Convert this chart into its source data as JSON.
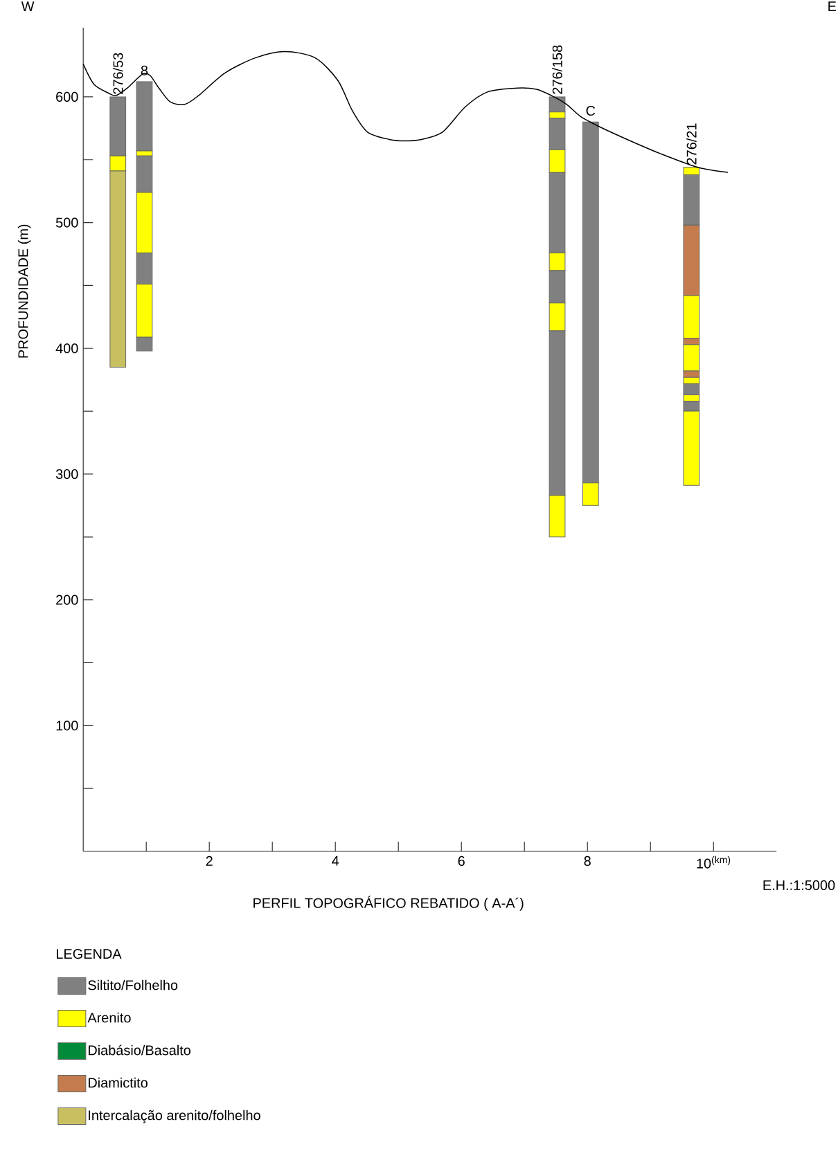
{
  "chart_data": {
    "type": "bar",
    "xlabel": "PERFIL TOPOGRÁFICO REBATIDO ( A-A´)",
    "ylabel": "PROFUNDIDADE (m)",
    "legend_title": "LEGENDA",
    "legend": "bottom",
    "xlim": [
      0,
      11
    ],
    "ylim": [
      0,
      655
    ],
    "xticks": [
      {
        "value": 1,
        "label": null
      },
      2,
      {
        "value": 3,
        "label": null
      },
      4,
      {
        "value": 5,
        "label": null
      },
      6,
      {
        "value": 7,
        "label": null
      },
      8,
      {
        "value": 9,
        "label": null
      },
      {
        "value": 10,
        "label": "10$^{(km)}$"
      }
    ],
    "yticks": [
      {
        "value": 50,
        "label": null
      },
      100,
      {
        "value": 150,
        "label": null
      },
      200,
      {
        "value": 250,
        "label": null
      },
      300,
      {
        "value": 350,
        "label": null
      },
      400,
      {
        "value": 450,
        "label": null
      },
      500,
      {
        "value": 550,
        "label": null
      },
      600
    ],
    "series": [
      {
        "name": "Siltito/Folhelho",
        "color": "#808080",
        "x": [
          0.55,
          0.97,
          7.52,
          8.05,
          9.65
        ],
        "base": [
          553,
          557,
          588,
          293,
          498
        ],
        "values": [
          47,
          55,
          12,
          287,
          40
        ]
      },
      {
        "name": "Arenito",
        "color": "#ffff00",
        "x": [
          0.55,
          0.97,
          7.52,
          8.05,
          9.65
        ],
        "base": [
          541,
          553,
          583,
          275,
          538
        ],
        "values": [
          12,
          4,
          5,
          18,
          6
        ]
      },
      {
        "name": "Diabásio/Basalto",
        "color": "#008a3a"
      },
      {
        "name": "Diamictito",
        "color": "#c47c4e",
        "x": [
          9.65
        ],
        "base": [
          442
        ],
        "values": [
          56
        ]
      },
      {
        "name": "Intercalação arenito/folhelho",
        "color": "#c8c060",
        "x": [
          0.55
        ],
        "base": [
          385
        ],
        "values": [
          156
        ]
      },
      {
        "color": "#808080",
        "x": [
          0.97,
          7.52,
          9.65
        ],
        "base": [
          524,
          558,
          363
        ],
        "values": [
          29,
          25,
          9
        ]
      },
      {
        "color": "#808080",
        "x": [
          0.97,
          7.52,
          9.65
        ],
        "base": [
          451,
          476,
          350
        ],
        "values": [
          25,
          64,
          8
        ]
      },
      {
        "color": "#808080",
        "x": [
          0.97,
          7.52
        ],
        "base": [
          398,
          436
        ],
        "values": [
          11,
          26
        ]
      },
      {
        "color": "#808080",
        "x": [
          7.52
        ],
        "base": [
          283
        ],
        "values": [
          131
        ]
      },
      {
        "color": "#ffff00",
        "x": [
          0.97,
          7.52,
          9.65
        ],
        "base": [
          476,
          540,
          408
        ],
        "values": [
          48,
          18,
          34
        ]
      },
      {
        "color": "#ffff00",
        "x": [
          0.97,
          7.52,
          9.65
        ],
        "base": [
          409,
          462,
          382
        ],
        "values": [
          42,
          14,
          21
        ]
      },
      {
        "color": "#ffff00",
        "x": [
          7.52,
          9.65
        ],
        "base": [
          414,
          372
        ],
        "values": [
          22,
          5
        ]
      },
      {
        "color": "#ffff00",
        "x": [
          7.52,
          9.65
        ],
        "base": [
          250,
          358
        ],
        "values": [
          33,
          5
        ]
      },
      {
        "color": "#ffff00",
        "x": [
          9.65
        ],
        "base": [
          291
        ],
        "values": [
          59
        ]
      },
      {
        "color": "#c47c4e",
        "x": [
          9.65
        ],
        "base": [
          403
        ],
        "values": [
          5
        ]
      },
      {
        "color": "#c47c4e",
        "x": [
          9.65
        ],
        "base": [
          377
        ],
        "values": [
          5
        ]
      },
      {
        "type": "line",
        "color": "#000000",
        "x": [
          0,
          0.17,
          0.4,
          0.52,
          0.7,
          0.94,
          1.06,
          1.2,
          1.38,
          1.61,
          1.83,
          2.25,
          2.73,
          3.2,
          3.68,
          4.04,
          4.27,
          4.51,
          4.87,
          5.1,
          5.35,
          5.7,
          6.06,
          6.42,
          6.89,
          7.19,
          7.43,
          7.67,
          7.9,
          8.2,
          8.68,
          9.15,
          9.75,
          10.23
        ],
        "values": [
          626,
          610,
          603,
          601,
          607,
          618,
          617,
          607,
          596,
          594,
          601,
          619,
          631,
          636,
          631,
          613,
          589,
          572,
          566,
          565,
          566,
          572,
          592,
          604,
          607,
          606,
          601,
          594,
          584,
          576,
          565,
          555,
          544,
          540
        ]
      }
    ],
    "annotations": [
      "W",
      "E",
      {
        "text": "276/53",
        "x": 0.55,
        "y": 600
      },
      {
        "text": "8",
        "x": 0.97,
        "y": 612
      },
      {
        "text": "276/158",
        "x": 7.52,
        "y": 600
      },
      {
        "text": "C",
        "x": 8.05,
        "y": 580
      },
      {
        "text": "276/21",
        "x": 9.65,
        "y": 544
      },
      "E.H.:1:5000"
    ]
  }
}
